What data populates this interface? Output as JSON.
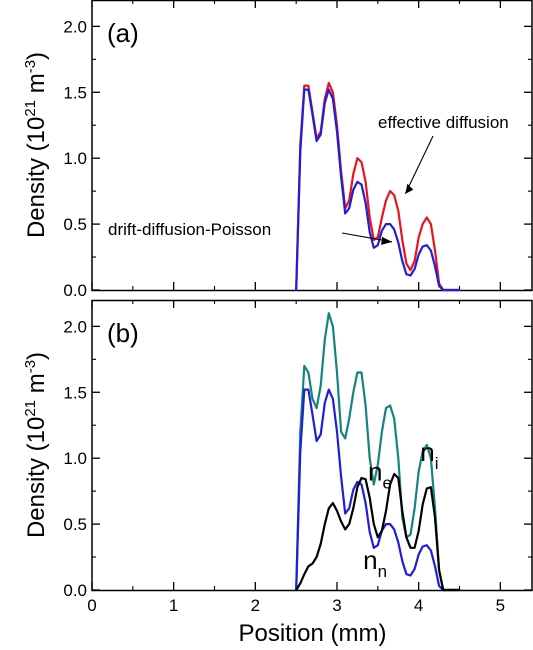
{
  "chart_data": [
    {
      "type": "line",
      "panel_label": "(a)",
      "xlim": [
        0,
        5.4
      ],
      "ylim": [
        0,
        2.2
      ],
      "xticks": [
        0,
        1,
        2,
        3,
        4,
        5
      ],
      "xtick_labels": [
        "",
        "",
        "",
        "",
        "",
        ""
      ],
      "yticks": [
        0.0,
        0.5,
        1.0,
        1.5,
        2.0
      ],
      "ytick_labels": [
        "0.0",
        "0.5",
        "1.0",
        "1.5",
        "2.0"
      ],
      "ylabel": {
        "main": "Density (10",
        "sup1": "21",
        "mid": " m",
        "sup2": "-3",
        "end": ")"
      },
      "grid": false,
      "series": [
        {
          "name": "effective diffusion",
          "color": "#e8141c",
          "x": [
            2.5,
            2.55,
            2.6,
            2.65,
            2.7,
            2.75,
            2.8,
            2.85,
            2.9,
            2.95,
            3.0,
            3.05,
            3.1,
            3.15,
            3.2,
            3.25,
            3.3,
            3.35,
            3.4,
            3.45,
            3.5,
            3.55,
            3.6,
            3.65,
            3.7,
            3.75,
            3.8,
            3.85,
            3.9,
            3.95,
            4.0,
            4.05,
            4.1,
            4.15,
            4.2,
            4.25,
            4.3,
            4.35,
            4.4,
            4.45,
            4.5
          ],
          "y": [
            0.0,
            1.1,
            1.55,
            1.55,
            1.35,
            1.15,
            1.2,
            1.45,
            1.57,
            1.5,
            1.25,
            0.9,
            0.62,
            0.68,
            0.88,
            1.0,
            0.97,
            0.82,
            0.55,
            0.38,
            0.4,
            0.55,
            0.68,
            0.75,
            0.72,
            0.6,
            0.38,
            0.2,
            0.15,
            0.22,
            0.4,
            0.5,
            0.55,
            0.5,
            0.3,
            0.05,
            0.0,
            0.0,
            0.0,
            0.0,
            0.0
          ]
        },
        {
          "name": "drift-diffusion-Poisson",
          "color": "#1f1fd8",
          "x": [
            2.5,
            2.55,
            2.6,
            2.65,
            2.7,
            2.75,
            2.8,
            2.85,
            2.9,
            2.95,
            3.0,
            3.05,
            3.1,
            3.15,
            3.2,
            3.25,
            3.3,
            3.35,
            3.4,
            3.45,
            3.5,
            3.55,
            3.6,
            3.65,
            3.7,
            3.75,
            3.8,
            3.85,
            3.9,
            3.95,
            4.0,
            4.05,
            4.1,
            4.15,
            4.2,
            4.25,
            4.3,
            4.35,
            4.4,
            4.45,
            4.5
          ],
          "y": [
            0.0,
            1.05,
            1.52,
            1.52,
            1.33,
            1.13,
            1.18,
            1.42,
            1.52,
            1.45,
            1.2,
            0.86,
            0.58,
            0.62,
            0.76,
            0.82,
            0.8,
            0.66,
            0.44,
            0.32,
            0.34,
            0.45,
            0.5,
            0.5,
            0.46,
            0.36,
            0.22,
            0.12,
            0.11,
            0.16,
            0.27,
            0.33,
            0.34,
            0.3,
            0.18,
            0.03,
            0.0,
            0.0,
            0.0,
            0.0,
            0.0
          ]
        }
      ],
      "annotations": [
        {
          "text": "effective diffusion",
          "target_x": 3.8,
          "target_y": 0.7
        },
        {
          "text": "drift-diffusion-Poisson",
          "target_x": 3.65,
          "target_y": 0.38
        }
      ]
    },
    {
      "type": "line",
      "panel_label": "(b)",
      "xlim": [
        0,
        5.4
      ],
      "ylim": [
        0,
        2.2
      ],
      "xticks": [
        0,
        1,
        2,
        3,
        4,
        5
      ],
      "xtick_labels": [
        "0",
        "1",
        "2",
        "3",
        "4",
        "5"
      ],
      "yticks": [
        0.0,
        0.5,
        1.0,
        1.5,
        2.0
      ],
      "ytick_labels": [
        "0.0",
        "0.5",
        "1.0",
        "1.5",
        "2.0"
      ],
      "xlabel": "Position (mm)",
      "ylabel": {
        "main": "Density (10",
        "sup1": "21",
        "mid": " m",
        "sup2": "-3",
        "end": ")"
      },
      "grid": false,
      "series": [
        {
          "name": "n_i",
          "color": "#13857c",
          "x": [
            2.5,
            2.55,
            2.6,
            2.65,
            2.7,
            2.75,
            2.8,
            2.85,
            2.9,
            2.95,
            3.0,
            3.05,
            3.1,
            3.15,
            3.2,
            3.25,
            3.3,
            3.35,
            3.4,
            3.45,
            3.5,
            3.55,
            3.6,
            3.65,
            3.7,
            3.75,
            3.8,
            3.85,
            3.9,
            3.95,
            4.0,
            4.05,
            4.1,
            4.15,
            4.2,
            4.25,
            4.3,
            4.35,
            4.4,
            4.45,
            4.5
          ],
          "y": [
            0.0,
            1.2,
            1.7,
            1.65,
            1.45,
            1.38,
            1.55,
            1.9,
            2.1,
            2.0,
            1.65,
            1.2,
            1.15,
            1.3,
            1.5,
            1.65,
            1.65,
            1.4,
            1.0,
            0.8,
            0.95,
            1.2,
            1.38,
            1.4,
            1.3,
            1.0,
            0.55,
            0.4,
            0.42,
            0.62,
            0.9,
            1.05,
            1.1,
            1.0,
            0.62,
            0.15,
            0.0,
            0.0,
            0.0,
            0.0,
            0.0
          ]
        },
        {
          "name": "n_e",
          "color": "#1f1fd8",
          "x": [
            2.5,
            2.55,
            2.6,
            2.65,
            2.7,
            2.75,
            2.8,
            2.85,
            2.9,
            2.95,
            3.0,
            3.05,
            3.1,
            3.15,
            3.2,
            3.25,
            3.3,
            3.35,
            3.4,
            3.45,
            3.5,
            3.55,
            3.6,
            3.65,
            3.7,
            3.75,
            3.8,
            3.85,
            3.9,
            3.95,
            4.0,
            4.05,
            4.1,
            4.15,
            4.2,
            4.25,
            4.3,
            4.35,
            4.4,
            4.45,
            4.5
          ],
          "y": [
            0.0,
            1.05,
            1.52,
            1.52,
            1.33,
            1.13,
            1.18,
            1.42,
            1.52,
            1.45,
            1.2,
            0.86,
            0.58,
            0.62,
            0.76,
            0.82,
            0.8,
            0.66,
            0.44,
            0.32,
            0.34,
            0.45,
            0.5,
            0.5,
            0.46,
            0.36,
            0.22,
            0.12,
            0.11,
            0.16,
            0.27,
            0.33,
            0.34,
            0.3,
            0.18,
            0.03,
            0.0,
            0.0,
            0.0,
            0.0,
            0.0
          ]
        },
        {
          "name": "n_n",
          "color": "#000000",
          "x": [
            2.5,
            2.55,
            2.6,
            2.65,
            2.7,
            2.75,
            2.8,
            2.85,
            2.9,
            2.95,
            3.0,
            3.05,
            3.1,
            3.15,
            3.2,
            3.25,
            3.3,
            3.35,
            3.4,
            3.45,
            3.5,
            3.55,
            3.6,
            3.65,
            3.7,
            3.75,
            3.8,
            3.85,
            3.9,
            3.95,
            4.0,
            4.05,
            4.1,
            4.15,
            4.2,
            4.25,
            4.3,
            4.35,
            4.4,
            4.45,
            4.5
          ],
          "y": [
            0.0,
            0.05,
            0.12,
            0.18,
            0.2,
            0.25,
            0.35,
            0.5,
            0.62,
            0.66,
            0.6,
            0.52,
            0.46,
            0.5,
            0.62,
            0.78,
            0.85,
            0.84,
            0.7,
            0.5,
            0.4,
            0.45,
            0.6,
            0.8,
            0.88,
            0.85,
            0.6,
            0.4,
            0.32,
            0.32,
            0.45,
            0.65,
            0.77,
            0.78,
            0.55,
            0.15,
            0.0,
            0.0,
            0.0,
            0.0,
            0.0
          ]
        }
      ],
      "curve_labels": [
        {
          "main": "n",
          "sub": "i",
          "x": 4.02,
          "y": 0.98
        },
        {
          "main": "n",
          "sub": "e",
          "x": 3.38,
          "y": 0.83
        },
        {
          "main": "n",
          "sub": "n",
          "x": 3.32,
          "y": 0.16
        }
      ]
    }
  ]
}
